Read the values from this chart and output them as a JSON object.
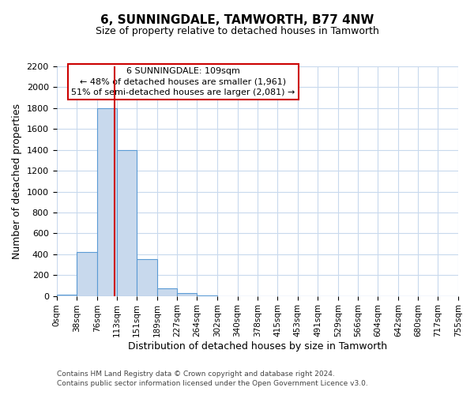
{
  "title": "6, SUNNINGDALE, TAMWORTH, B77 4NW",
  "subtitle": "Size of property relative to detached houses in Tamworth",
  "xlabel": "Distribution of detached houses by size in Tamworth",
  "ylabel": "Number of detached properties",
  "bar_color": "#c8d9ed",
  "bar_edge_color": "#5b9bd5",
  "vline_color": "#cc0000",
  "vline_x": 109,
  "bin_edges": [
    0,
    38,
    76,
    113,
    151,
    189,
    227,
    264,
    302,
    340,
    378,
    415,
    453,
    491,
    529,
    566,
    604,
    642,
    680,
    717,
    755
  ],
  "bar_heights": [
    15,
    420,
    1800,
    1400,
    350,
    75,
    25,
    5,
    0,
    0,
    0,
    0,
    0,
    0,
    0,
    0,
    0,
    0,
    0,
    0
  ],
  "tick_labels": [
    "0sqm",
    "38sqm",
    "76sqm",
    "113sqm",
    "151sqm",
    "189sqm",
    "227sqm",
    "264sqm",
    "302sqm",
    "340sqm",
    "378sqm",
    "415sqm",
    "453sqm",
    "491sqm",
    "529sqm",
    "566sqm",
    "604sqm",
    "642sqm",
    "680sqm",
    "717sqm",
    "755sqm"
  ],
  "ylim": [
    0,
    2200
  ],
  "yticks": [
    0,
    200,
    400,
    600,
    800,
    1000,
    1200,
    1400,
    1600,
    1800,
    2000,
    2200
  ],
  "annotation_box_text": "6 SUNNINGDALE: 109sqm\n← 48% of detached houses are smaller (1,961)\n51% of semi-detached houses are larger (2,081) →",
  "annotation_box_color": "#ffffff",
  "annotation_box_edge_color": "#cc0000",
  "footer_line1": "Contains HM Land Registry data © Crown copyright and database right 2024.",
  "footer_line2": "Contains public sector information licensed under the Open Government Licence v3.0.",
  "background_color": "#ffffff",
  "grid_color": "#c8d9ed",
  "title_fontsize": 11,
  "subtitle_fontsize": 9,
  "xlabel_fontsize": 9,
  "ylabel_fontsize": 9,
  "tick_fontsize": 7.5,
  "ytick_fontsize": 8,
  "footer_fontsize": 6.5
}
